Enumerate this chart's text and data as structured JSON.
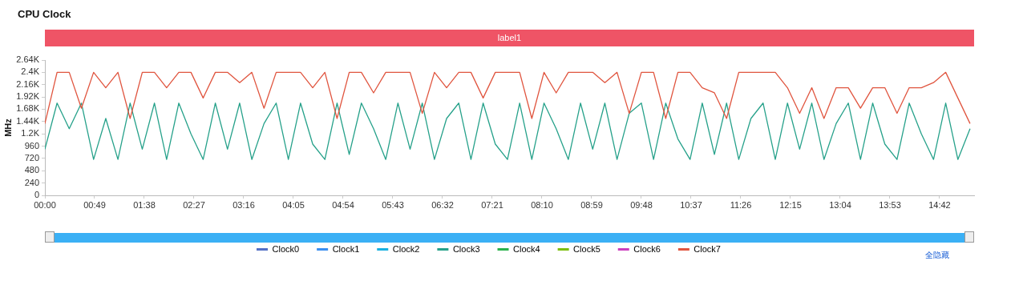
{
  "chart_data": {
    "type": "line",
    "title": "CPU Clock",
    "ylabel": "MHz",
    "x": [
      0,
      12,
      24,
      36,
      48,
      60,
      72,
      84,
      96,
      108,
      120,
      132,
      144,
      156,
      168,
      180,
      192,
      204,
      216,
      228,
      240,
      252,
      264,
      276,
      288,
      300,
      312,
      324,
      336,
      348,
      360,
      372,
      384,
      396,
      408,
      420,
      432,
      444,
      456,
      468,
      480,
      492,
      504,
      516,
      528,
      540,
      552,
      564,
      576,
      588,
      600,
      612,
      624,
      636,
      648,
      660,
      672,
      684,
      696,
      708,
      720,
      732,
      744,
      756,
      768,
      780,
      792,
      804,
      816,
      828,
      840,
      852,
      864,
      876,
      888,
      900,
      912
    ],
    "xlim": [
      0,
      916
    ],
    "xticks": [
      {
        "value": 0,
        "label": "00:00"
      },
      {
        "value": 49,
        "label": "00:49"
      },
      {
        "value": 98,
        "label": "01:38"
      },
      {
        "value": 147,
        "label": "02:27"
      },
      {
        "value": 196,
        "label": "03:16"
      },
      {
        "value": 245,
        "label": "04:05"
      },
      {
        "value": 294,
        "label": "04:54"
      },
      {
        "value": 343,
        "label": "05:43"
      },
      {
        "value": 392,
        "label": "06:32"
      },
      {
        "value": 441,
        "label": "07:21"
      },
      {
        "value": 490,
        "label": "08:10"
      },
      {
        "value": 539,
        "label": "08:59"
      },
      {
        "value": 588,
        "label": "09:48"
      },
      {
        "value": 637,
        "label": "10:37"
      },
      {
        "value": 686,
        "label": "11:26"
      },
      {
        "value": 735,
        "label": "12:15"
      },
      {
        "value": 784,
        "label": "13:04"
      },
      {
        "value": 833,
        "label": "13:53"
      },
      {
        "value": 882,
        "label": "14:42"
      }
    ],
    "ylim": [
      0,
      2640
    ],
    "yticks": [
      0,
      240,
      480,
      720,
      960,
      {
        "value": 1200,
        "label": "1.2K"
      },
      {
        "value": 1440,
        "label": "1.44K"
      },
      {
        "value": 1680,
        "label": "1.68K"
      },
      {
        "value": 1920,
        "label": "1.92K"
      },
      {
        "value": 2160,
        "label": "2.16K"
      },
      {
        "value": 2400,
        "label": "2.4K"
      },
      {
        "value": 2640,
        "label": "2.64K"
      }
    ],
    "grid": false,
    "legend": "bottom",
    "marker": "none",
    "line_style": "solid",
    "annotations": [
      "label1",
      "全隐藏"
    ],
    "series": [
      {
        "name": "Clock0",
        "color": "#5470c6",
        "values": [
          null,
          null,
          null,
          null,
          null,
          null,
          null,
          null,
          null,
          null,
          null,
          null,
          null,
          null,
          null,
          null,
          null,
          null,
          null,
          null,
          null,
          null,
          null,
          null,
          null,
          null,
          null,
          null,
          null,
          null,
          null,
          null,
          null,
          null,
          null,
          null,
          null,
          null,
          null,
          null,
          null,
          null,
          null,
          null,
          null,
          null,
          null,
          null,
          null,
          null,
          null,
          null,
          null,
          null,
          null,
          null,
          null,
          null,
          null,
          null,
          null,
          null,
          null,
          null,
          null,
          null,
          null,
          null,
          null,
          null,
          null,
          null,
          null,
          null,
          null,
          null,
          null
        ]
      },
      {
        "name": "Clock1",
        "color": "#3b8ff0",
        "values": [
          null,
          null,
          null,
          null,
          null,
          null,
          null,
          null,
          null,
          null,
          null,
          null,
          null,
          null,
          null,
          null,
          null,
          null,
          null,
          null,
          null,
          null,
          null,
          null,
          null,
          null,
          null,
          null,
          null,
          null,
          null,
          null,
          null,
          null,
          null,
          null,
          null,
          null,
          null,
          null,
          null,
          null,
          null,
          null,
          null,
          null,
          null,
          null,
          null,
          null,
          null,
          null,
          null,
          null,
          null,
          null,
          null,
          null,
          null,
          null,
          null,
          null,
          null,
          null,
          null,
          null,
          null,
          null,
          null,
          null,
          null,
          null,
          null,
          null,
          null,
          null,
          null
        ]
      },
      {
        "name": "Clock2",
        "color": "#1ab0e0",
        "values": [
          null,
          null,
          null,
          null,
          null,
          null,
          null,
          null,
          null,
          null,
          null,
          null,
          null,
          null,
          null,
          null,
          null,
          null,
          null,
          null,
          null,
          null,
          null,
          null,
          null,
          null,
          null,
          null,
          null,
          null,
          null,
          null,
          null,
          null,
          null,
          null,
          null,
          null,
          null,
          null,
          null,
          null,
          null,
          null,
          null,
          null,
          null,
          null,
          null,
          null,
          null,
          null,
          null,
          null,
          null,
          null,
          null,
          null,
          null,
          null,
          null,
          null,
          null,
          null,
          null,
          null,
          null,
          null,
          null,
          null,
          null,
          null,
          null,
          null,
          null,
          null,
          null
        ]
      },
      {
        "name": "Clock3",
        "color": "#26a18a",
        "values": [
          900,
          1800,
          1300,
          1800,
          700,
          1500,
          700,
          1800,
          900,
          1800,
          700,
          1800,
          1200,
          700,
          1800,
          900,
          1800,
          700,
          1400,
          1800,
          700,
          1800,
          1000,
          700,
          1800,
          800,
          1800,
          1300,
          700,
          1800,
          900,
          1800,
          700,
          1500,
          1800,
          700,
          1800,
          1000,
          700,
          1800,
          700,
          1800,
          1300,
          700,
          1800,
          900,
          1800,
          700,
          1600,
          1800,
          700,
          1800,
          1100,
          700,
          1800,
          800,
          1800,
          700,
          1500,
          1800,
          700,
          1800,
          900,
          1800,
          700,
          1400,
          1800,
          700,
          1800,
          1000,
          700,
          1800,
          1200,
          700,
          1800,
          700,
          1300
        ]
      },
      {
        "name": "Clock4",
        "color": "#2bb24c",
        "values": [
          null,
          null,
          null,
          null,
          null,
          null,
          null,
          null,
          null,
          null,
          null,
          null,
          null,
          null,
          null,
          null,
          null,
          null,
          null,
          null,
          null,
          null,
          null,
          null,
          null,
          null,
          null,
          null,
          null,
          null,
          null,
          null,
          null,
          null,
          null,
          null,
          null,
          null,
          null,
          null,
          null,
          null,
          null,
          null,
          null,
          null,
          null,
          null,
          null,
          null,
          null,
          null,
          null,
          null,
          null,
          null,
          null,
          null,
          null,
          null,
          null,
          null,
          null,
          null,
          null,
          null,
          null,
          null,
          null,
          null,
          null,
          null,
          null,
          null,
          null,
          null,
          null
        ]
      },
      {
        "name": "Clock5",
        "color": "#7cbf0c",
        "values": [
          null,
          null,
          null,
          null,
          null,
          null,
          null,
          null,
          null,
          null,
          null,
          null,
          null,
          null,
          null,
          null,
          null,
          null,
          null,
          null,
          null,
          null,
          null,
          null,
          null,
          null,
          null,
          null,
          null,
          null,
          null,
          null,
          null,
          null,
          null,
          null,
          null,
          null,
          null,
          null,
          null,
          null,
          null,
          null,
          null,
          null,
          null,
          null,
          null,
          null,
          null,
          null,
          null,
          null,
          null,
          null,
          null,
          null,
          null,
          null,
          null,
          null,
          null,
          null,
          null,
          null,
          null,
          null,
          null,
          null,
          null,
          null,
          null,
          null,
          null,
          null,
          null
        ]
      },
      {
        "name": "Clock6",
        "color": "#cc3fbf",
        "values": [
          null,
          null,
          null,
          null,
          null,
          null,
          null,
          null,
          null,
          null,
          null,
          null,
          null,
          null,
          null,
          null,
          null,
          null,
          null,
          null,
          null,
          null,
          null,
          null,
          null,
          null,
          null,
          null,
          null,
          null,
          null,
          null,
          null,
          null,
          null,
          null,
          null,
          null,
          null,
          null,
          null,
          null,
          null,
          null,
          null,
          null,
          null,
          null,
          null,
          null,
          null,
          null,
          null,
          null,
          null,
          null,
          null,
          null,
          null,
          null,
          null,
          null,
          null,
          null,
          null,
          null,
          null,
          null,
          null,
          null,
          null,
          null,
          null,
          null,
          null,
          null,
          null
        ]
      },
      {
        "name": "Clock7",
        "color": "#e0553f",
        "values": [
          1400,
          2400,
          2400,
          1700,
          2400,
          2100,
          2400,
          1500,
          2400,
          2400,
          2100,
          2400,
          2400,
          1900,
          2400,
          2400,
          2200,
          2400,
          1700,
          2400,
          2400,
          2400,
          2100,
          2400,
          1500,
          2400,
          2400,
          2000,
          2400,
          2400,
          2400,
          1600,
          2400,
          2100,
          2400,
          2400,
          1900,
          2400,
          2400,
          2400,
          1500,
          2400,
          2000,
          2400,
          2400,
          2400,
          2200,
          2400,
          1600,
          2400,
          2400,
          1500,
          2400,
          2400,
          2100,
          2000,
          1500,
          2400,
          2400,
          2400,
          2400,
          2100,
          1600,
          2100,
          1500,
          2100,
          2100,
          1700,
          2100,
          2100,
          1600,
          2100,
          2100,
          2200,
          2400,
          1900,
          1400
        ]
      }
    ]
  }
}
